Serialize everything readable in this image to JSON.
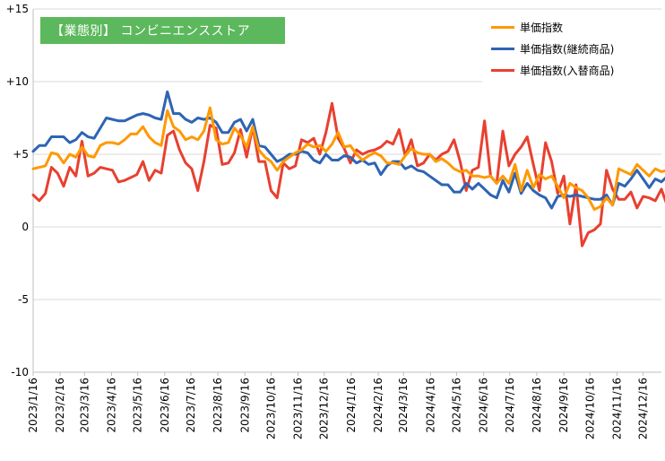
{
  "chart_data": {
    "type": "line",
    "title": "【業態別】 コンビニエンスストア",
    "xlabel": "",
    "ylabel": "",
    "ylim": [
      -10,
      15
    ],
    "y_ticks": [
      15,
      10,
      5,
      0,
      -5,
      -10
    ],
    "y_tick_labels": [
      "+15",
      "+10",
      "+5",
      "0",
      "-5",
      "-10"
    ],
    "x_tick_labels": [
      "2023/1/16",
      "2023/2/16",
      "2023/3/16",
      "2023/4/16",
      "2023/5/16",
      "2023/6/16",
      "2023/7/16",
      "2023/8/16",
      "2023/9/16",
      "2023/10/16",
      "2023/11/16",
      "2023/12/16",
      "2024/1/16",
      "2024/2/16",
      "2024/3/16",
      "2024/4/16",
      "2024/5/16",
      "2024/6/16",
      "2024/7/16",
      "2024/8/16",
      "2024/9/16",
      "2024/10/16",
      "2024/11/16",
      "2024/12/16"
    ],
    "x_start": "2023/1/16",
    "x_end": "2025/1/6",
    "grid": "horizontal",
    "legend_position": "top-right",
    "series": [
      {
        "name": "単価指数",
        "color": "#ff9900",
        "values": [
          4.0,
          4.1,
          4.2,
          5.1,
          5.0,
          4.4,
          5.0,
          4.8,
          5.5,
          4.9,
          4.8,
          5.6,
          5.8,
          5.8,
          5.7,
          6.0,
          6.4,
          6.4,
          6.9,
          6.2,
          5.8,
          5.6,
          8.0,
          6.9,
          6.6,
          6.0,
          6.2,
          6.0,
          6.6,
          8.2,
          6.0,
          5.7,
          5.8,
          6.8,
          6.3,
          5.5,
          6.9,
          5.3,
          4.8,
          4.5,
          3.9,
          4.5,
          4.8,
          5.1,
          5.3,
          5.7,
          5.5,
          5.6,
          5.2,
          5.7,
          6.5,
          5.5,
          5.6,
          5.0,
          4.6,
          4.9,
          5.1,
          4.9,
          4.4,
          4.4,
          4.3,
          4.9,
          5.4,
          5.1,
          5.0,
          5.0,
          4.5,
          4.7,
          4.4,
          4.0,
          3.8,
          3.9,
          3.5,
          3.5,
          3.4,
          3.5,
          3.0,
          3.5,
          3.0,
          4.3,
          2.5,
          3.9,
          2.7,
          3.6,
          3.3,
          3.5,
          2.8,
          2.0,
          3.0,
          2.7,
          2.5,
          2.0,
          1.2,
          1.4,
          2.0,
          1.5,
          4.0,
          3.8,
          3.6,
          4.3,
          3.9,
          3.5,
          4.0,
          3.8,
          3.9,
          4.6,
          3.8,
          3.9,
          5.2,
          4.8
        ]
      },
      {
        "name": "単価指数(継続商品)",
        "color": "#2e64b4",
        "values": [
          5.2,
          5.6,
          5.6,
          6.2,
          6.2,
          6.2,
          5.8,
          6.0,
          6.5,
          6.2,
          6.1,
          6.8,
          7.5,
          7.4,
          7.3,
          7.3,
          7.5,
          7.7,
          7.8,
          7.7,
          7.5,
          7.4,
          9.3,
          7.8,
          7.8,
          7.4,
          7.2,
          7.5,
          7.4,
          7.5,
          7.2,
          6.5,
          6.5,
          7.2,
          7.4,
          6.6,
          7.4,
          5.6,
          5.5,
          5.0,
          4.5,
          4.7,
          5.0,
          5.0,
          5.2,
          5.1,
          4.6,
          4.4,
          5.0,
          4.6,
          4.6,
          4.9,
          4.8,
          4.4,
          4.6,
          4.3,
          4.4,
          3.6,
          4.2,
          4.5,
          4.5,
          4.0,
          4.2,
          3.9,
          3.8,
          3.5,
          3.2,
          2.9,
          2.9,
          2.4,
          2.4,
          3.0,
          2.6,
          3.0,
          2.6,
          2.2,
          2.0,
          3.2,
          2.4,
          3.7,
          2.3,
          3.0,
          2.5,
          2.2,
          2.0,
          1.3,
          2.1,
          2.2,
          2.1,
          2.2,
          2.1,
          2.0,
          1.9,
          1.9,
          2.2,
          1.5,
          3.0,
          2.8,
          3.3,
          3.9,
          3.3,
          2.7,
          3.3,
          3.1,
          3.5,
          3.8,
          3.3,
          3.3,
          4.0,
          3.6
        ]
      },
      {
        "name": "単価指数(入替商品)",
        "color": "#e84030",
        "values": [
          2.2,
          1.8,
          2.3,
          4.1,
          3.7,
          2.8,
          4.1,
          3.5,
          5.9,
          3.5,
          3.7,
          4.1,
          4.0,
          3.9,
          3.1,
          3.2,
          3.4,
          3.6,
          4.5,
          3.2,
          3.9,
          3.7,
          6.3,
          6.6,
          5.3,
          4.4,
          4.0,
          2.5,
          4.5,
          7.0,
          6.8,
          4.3,
          4.4,
          5.1,
          6.7,
          4.8,
          6.9,
          4.5,
          4.5,
          2.5,
          2.0,
          4.4,
          4.0,
          4.2,
          6.0,
          5.8,
          6.1,
          5.0,
          6.5,
          8.5,
          6.1,
          5.4,
          4.4,
          5.3,
          5.0,
          5.2,
          5.3,
          5.5,
          5.9,
          5.7,
          6.7,
          4.9,
          6.0,
          4.2,
          4.4,
          5.0,
          4.6,
          5.0,
          5.2,
          6.0,
          4.5,
          2.5,
          3.9,
          4.1,
          7.3,
          3.5,
          3.0,
          6.6,
          4.2,
          5.0,
          5.5,
          6.2,
          4.3,
          2.5,
          5.8,
          4.5,
          2.3,
          3.5,
          0.2,
          2.9,
          -1.3,
          -0.4,
          -0.2,
          0.2,
          3.9,
          2.6,
          1.9,
          1.9,
          2.4,
          1.3,
          2.1,
          2.0,
          1.8,
          2.6,
          1.4,
          1.6,
          4.0,
          4.2,
          4.5,
          3.6
        ]
      }
    ]
  }
}
